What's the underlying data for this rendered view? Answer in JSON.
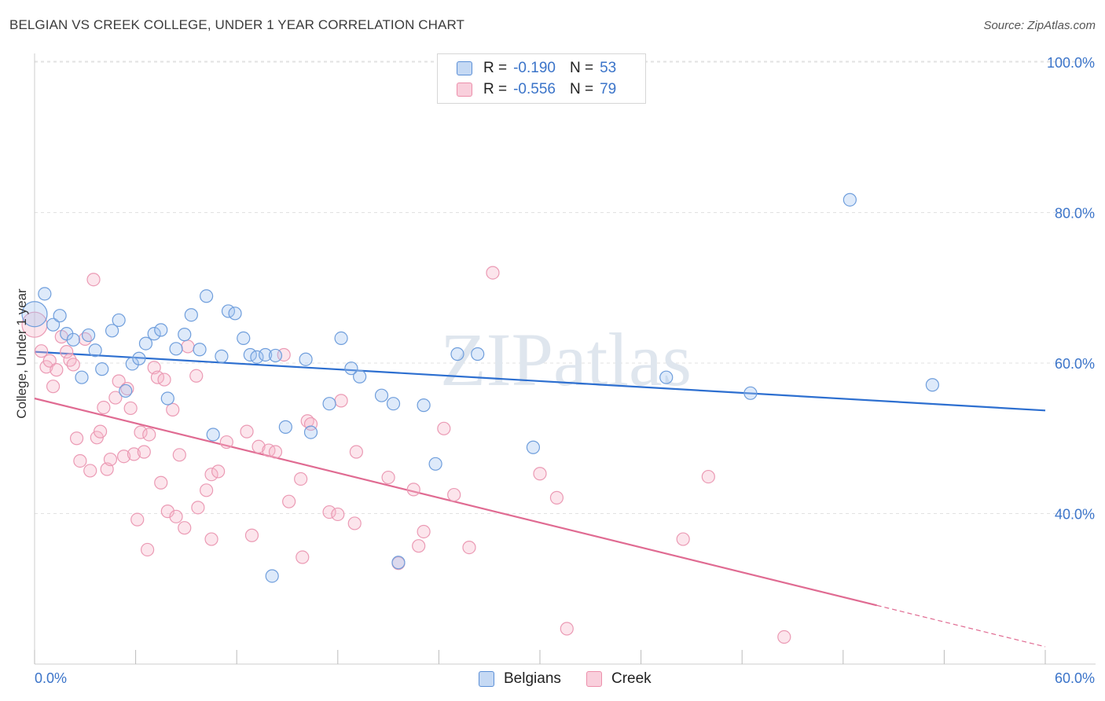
{
  "title": "BELGIAN VS CREEK COLLEGE, UNDER 1 YEAR CORRELATION CHART",
  "source": "Source: ZipAtlas.com",
  "watermark": "ZIPatlas",
  "legend": {
    "belgians": {
      "r_label": "R =",
      "r_value": "-0.190",
      "n_label": "N =",
      "n_value": "53"
    },
    "creek": {
      "r_label": "R =",
      "r_value": "-0.556",
      "n_label": "N =",
      "n_value": "79"
    }
  },
  "chart_data": {
    "type": "scatter",
    "title": "BELGIAN VS CREEK COLLEGE, UNDER 1 YEAR CORRELATION CHART",
    "xlabel": "",
    "ylabel": "College, Under 1 year",
    "xlim": [
      0,
      60
    ],
    "ylim": [
      20,
      102
    ],
    "x_tick_labels": [
      "0.0%",
      "60.0%"
    ],
    "y_tick_labels": [
      "100.0%",
      "80.0%",
      "60.0%",
      "40.0%"
    ],
    "y_ticks": [
      100,
      80,
      60,
      40
    ],
    "colors": {
      "belgians": "#5b8fd6",
      "creek": "#ec8fab",
      "belgians_line": "#2d6fd0",
      "creek_line": "#e06b92",
      "tick_text": "#3b74c9"
    },
    "series": [
      {
        "name": "Belgians",
        "trend": {
          "x": [
            0,
            60
          ],
          "y": [
            61.5,
            53.7
          ]
        },
        "points": [
          [
            0.0,
            66.5
          ],
          [
            0.6,
            69.2
          ],
          [
            1.1,
            65.1
          ],
          [
            1.5,
            66.3
          ],
          [
            1.9,
            63.9
          ],
          [
            2.3,
            63.1
          ],
          [
            2.8,
            58.1
          ],
          [
            3.2,
            63.7
          ],
          [
            3.6,
            61.7
          ],
          [
            4.0,
            59.2
          ],
          [
            4.6,
            64.3
          ],
          [
            5.0,
            65.7
          ],
          [
            5.4,
            56.3
          ],
          [
            5.8,
            59.9
          ],
          [
            6.2,
            60.6
          ],
          [
            6.6,
            62.6
          ],
          [
            7.1,
            63.9
          ],
          [
            7.5,
            64.4
          ],
          [
            7.9,
            55.3
          ],
          [
            8.4,
            61.9
          ],
          [
            8.9,
            63.8
          ],
          [
            9.3,
            66.4
          ],
          [
            9.8,
            61.8
          ],
          [
            10.2,
            68.9
          ],
          [
            10.6,
            50.5
          ],
          [
            11.1,
            60.9
          ],
          [
            11.5,
            66.9
          ],
          [
            11.9,
            66.6
          ],
          [
            12.4,
            63.3
          ],
          [
            12.8,
            61.1
          ],
          [
            13.2,
            60.8
          ],
          [
            13.7,
            61.1
          ],
          [
            14.3,
            61.0
          ],
          [
            14.1,
            31.7
          ],
          [
            14.9,
            51.5
          ],
          [
            16.1,
            60.5
          ],
          [
            16.4,
            50.8
          ],
          [
            17.5,
            54.6
          ],
          [
            18.2,
            63.3
          ],
          [
            18.8,
            59.3
          ],
          [
            19.3,
            58.2
          ],
          [
            20.6,
            55.7
          ],
          [
            21.3,
            54.6
          ],
          [
            21.6,
            33.5
          ],
          [
            23.1,
            54.4
          ],
          [
            23.8,
            46.6
          ],
          [
            25.1,
            61.2
          ],
          [
            26.3,
            61.2
          ],
          [
            29.6,
            48.8
          ],
          [
            37.5,
            58.1
          ],
          [
            42.5,
            56.0
          ],
          [
            48.4,
            81.7
          ],
          [
            53.3,
            57.1
          ]
        ]
      },
      {
        "name": "Creek",
        "trend": {
          "x": [
            0,
            50
          ],
          "y": [
            55.3,
            27.8
          ]
        },
        "trend_extension": {
          "x": [
            50,
            60
          ],
          "y": [
            27.8,
            22.3
          ]
        },
        "points": [
          [
            0.0,
            65.1
          ],
          [
            0.4,
            61.6
          ],
          [
            0.7,
            59.5
          ],
          [
            0.9,
            60.3
          ],
          [
            1.1,
            56.9
          ],
          [
            1.3,
            59.1
          ],
          [
            1.6,
            63.5
          ],
          [
            1.9,
            61.5
          ],
          [
            2.1,
            60.4
          ],
          [
            2.3,
            59.8
          ],
          [
            2.5,
            50.0
          ],
          [
            2.7,
            47.0
          ],
          [
            3.0,
            63.2
          ],
          [
            3.3,
            45.7
          ],
          [
            3.5,
            71.1
          ],
          [
            3.7,
            50.1
          ],
          [
            3.9,
            50.9
          ],
          [
            4.1,
            54.1
          ],
          [
            4.3,
            45.9
          ],
          [
            4.5,
            47.2
          ],
          [
            4.8,
            55.4
          ],
          [
            5.0,
            57.6
          ],
          [
            5.3,
            47.6
          ],
          [
            5.5,
            56.6
          ],
          [
            5.7,
            54.0
          ],
          [
            5.9,
            47.9
          ],
          [
            6.1,
            39.2
          ],
          [
            6.3,
            50.8
          ],
          [
            6.5,
            48.2
          ],
          [
            6.8,
            50.5
          ],
          [
            6.7,
            35.2
          ],
          [
            7.1,
            59.4
          ],
          [
            7.3,
            58.1
          ],
          [
            7.5,
            44.1
          ],
          [
            7.7,
            57.8
          ],
          [
            7.9,
            40.3
          ],
          [
            8.2,
            53.8
          ],
          [
            8.4,
            39.6
          ],
          [
            8.6,
            47.8
          ],
          [
            8.9,
            38.1
          ],
          [
            9.1,
            62.2
          ],
          [
            9.6,
            58.3
          ],
          [
            9.7,
            40.8
          ],
          [
            10.2,
            43.1
          ],
          [
            10.5,
            45.2
          ],
          [
            10.5,
            36.6
          ],
          [
            10.9,
            45.6
          ],
          [
            11.4,
            49.5
          ],
          [
            12.6,
            50.9
          ],
          [
            12.9,
            37.1
          ],
          [
            13.3,
            48.9
          ],
          [
            13.9,
            48.4
          ],
          [
            14.3,
            48.2
          ],
          [
            14.8,
            61.1
          ],
          [
            15.1,
            41.6
          ],
          [
            15.8,
            44.6
          ],
          [
            15.9,
            34.2
          ],
          [
            16.2,
            52.3
          ],
          [
            16.4,
            51.9
          ],
          [
            17.5,
            40.2
          ],
          [
            18.0,
            39.9
          ],
          [
            18.2,
            55.0
          ],
          [
            19.1,
            48.2
          ],
          [
            19.0,
            38.7
          ],
          [
            21.0,
            44.8
          ],
          [
            21.6,
            33.4
          ],
          [
            22.5,
            43.2
          ],
          [
            22.8,
            35.7
          ],
          [
            23.1,
            37.6
          ],
          [
            24.3,
            51.3
          ],
          [
            24.9,
            42.5
          ],
          [
            25.8,
            35.5
          ],
          [
            27.2,
            72.0
          ],
          [
            30.0,
            45.3
          ],
          [
            31.0,
            42.1
          ],
          [
            31.6,
            24.7
          ],
          [
            38.5,
            36.6
          ],
          [
            40.0,
            44.9
          ],
          [
            44.5,
            23.6
          ]
        ]
      }
    ]
  },
  "bottom_legend": {
    "belgians": "Belgians",
    "creek": "Creek"
  }
}
